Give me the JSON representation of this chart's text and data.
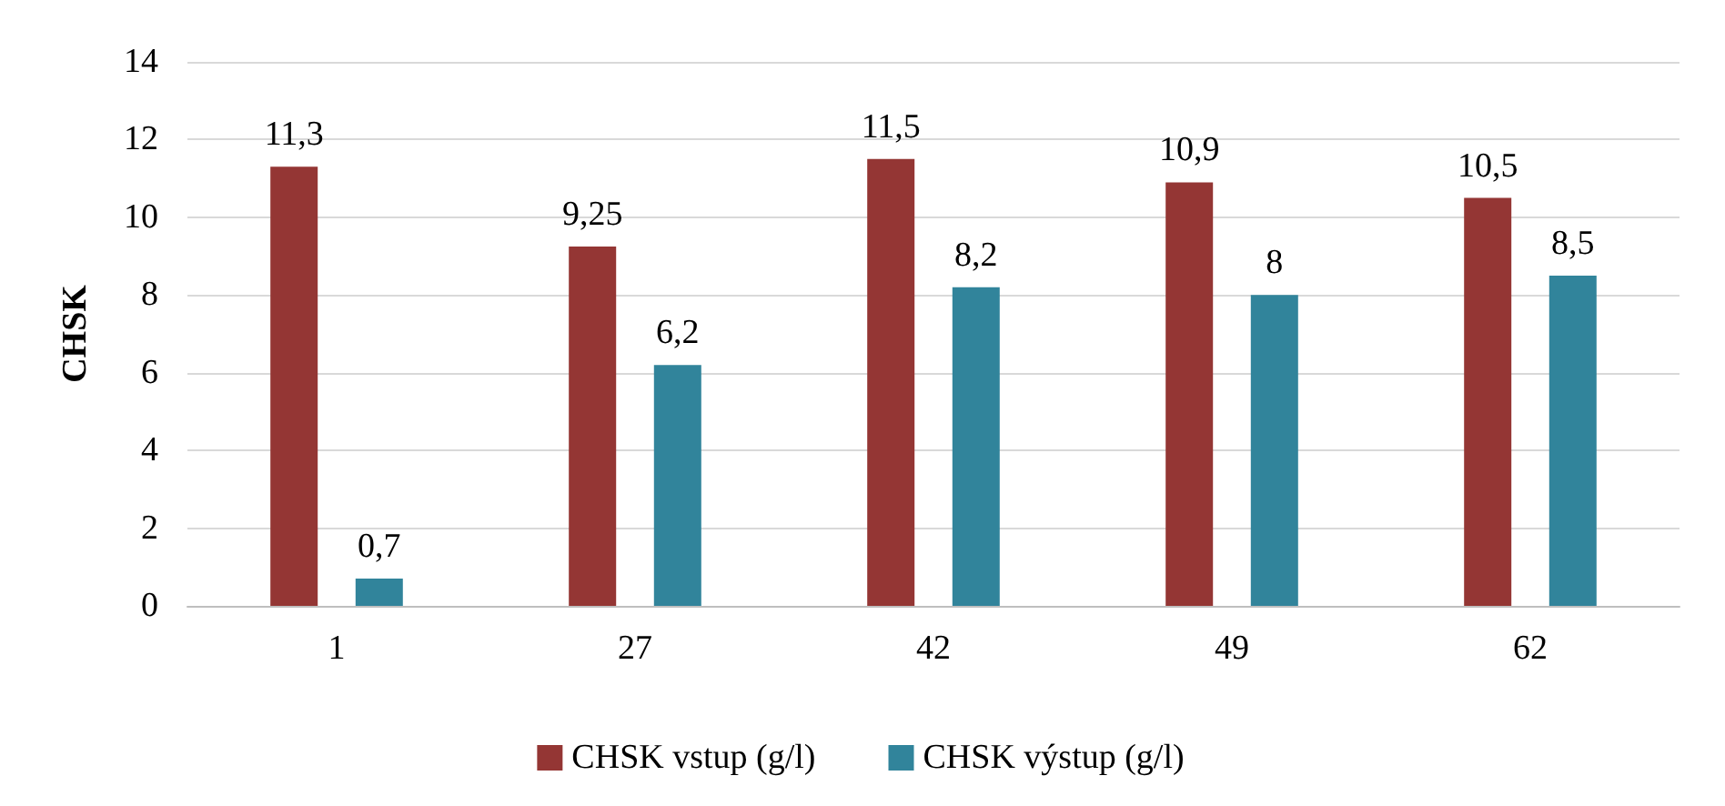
{
  "chart_data": {
    "type": "bar",
    "ylabel": "CHSK",
    "categories": [
      "1",
      "27",
      "42",
      "49",
      "62"
    ],
    "series": [
      {
        "name": "CHSK vstup (g/l)",
        "color": "#943634",
        "values": [
          11.3,
          9.25,
          11.5,
          10.9,
          10.5
        ],
        "value_labels": [
          "11,3",
          "9,25",
          "11,5",
          "10,9",
          "10,5"
        ]
      },
      {
        "name": "CHSK výstup (g/l)",
        "color": "#31849b",
        "values": [
          0.7,
          6.2,
          8.2,
          8,
          8.5
        ],
        "value_labels": [
          "0,7",
          "6,2",
          "8,2",
          "8",
          "8,5"
        ]
      }
    ],
    "ylim": [
      0,
      14
    ],
    "yticks": [
      0,
      2,
      4,
      6,
      8,
      10,
      12,
      14
    ],
    "grid": "y",
    "legend": "bottom"
  }
}
